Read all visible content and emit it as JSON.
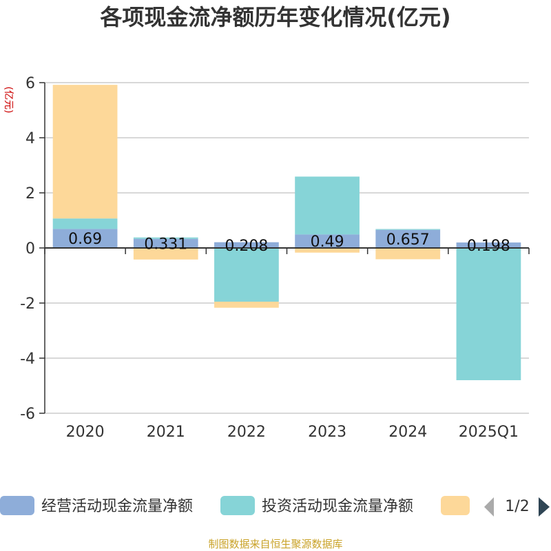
{
  "chart_data": {
    "type": "bar",
    "stacked": true,
    "title": "各项现金流净额历年变化情况(亿元)",
    "unit_label": "(亿元)",
    "categories": [
      "2020",
      "2021",
      "2022",
      "2023",
      "2024",
      "2025Q1"
    ],
    "ylim": [
      -6,
      6
    ],
    "yticks": [
      6,
      4,
      2,
      0,
      -2,
      -4,
      -6
    ],
    "grid": true,
    "legend_position": "bottom",
    "series": [
      {
        "name": "经营活动现金流量净额",
        "color": "#8eadd9",
        "values": [
          0.69,
          0.331,
          0.208,
          0.49,
          0.657,
          0.198
        ]
      },
      {
        "name": "投资活动现金流量净额",
        "color": "#86d4d7",
        "values": [
          0.38,
          0.05,
          -1.95,
          2.1,
          0.03,
          -4.8
        ]
      },
      {
        "name": "",
        "color": "#fdd899",
        "values": [
          4.85,
          -0.42,
          -0.22,
          -0.17,
          -0.41,
          0
        ]
      }
    ],
    "data_labels": [
      "0.69",
      "0.331",
      "0.208",
      "0.49",
      "0.657",
      "0.198"
    ]
  },
  "legend": {
    "page_indicator": "1/2",
    "prev_color": "#aaaaaa",
    "next_color": "#2f4554"
  },
  "source": "制图数据来自恒生聚源数据库"
}
